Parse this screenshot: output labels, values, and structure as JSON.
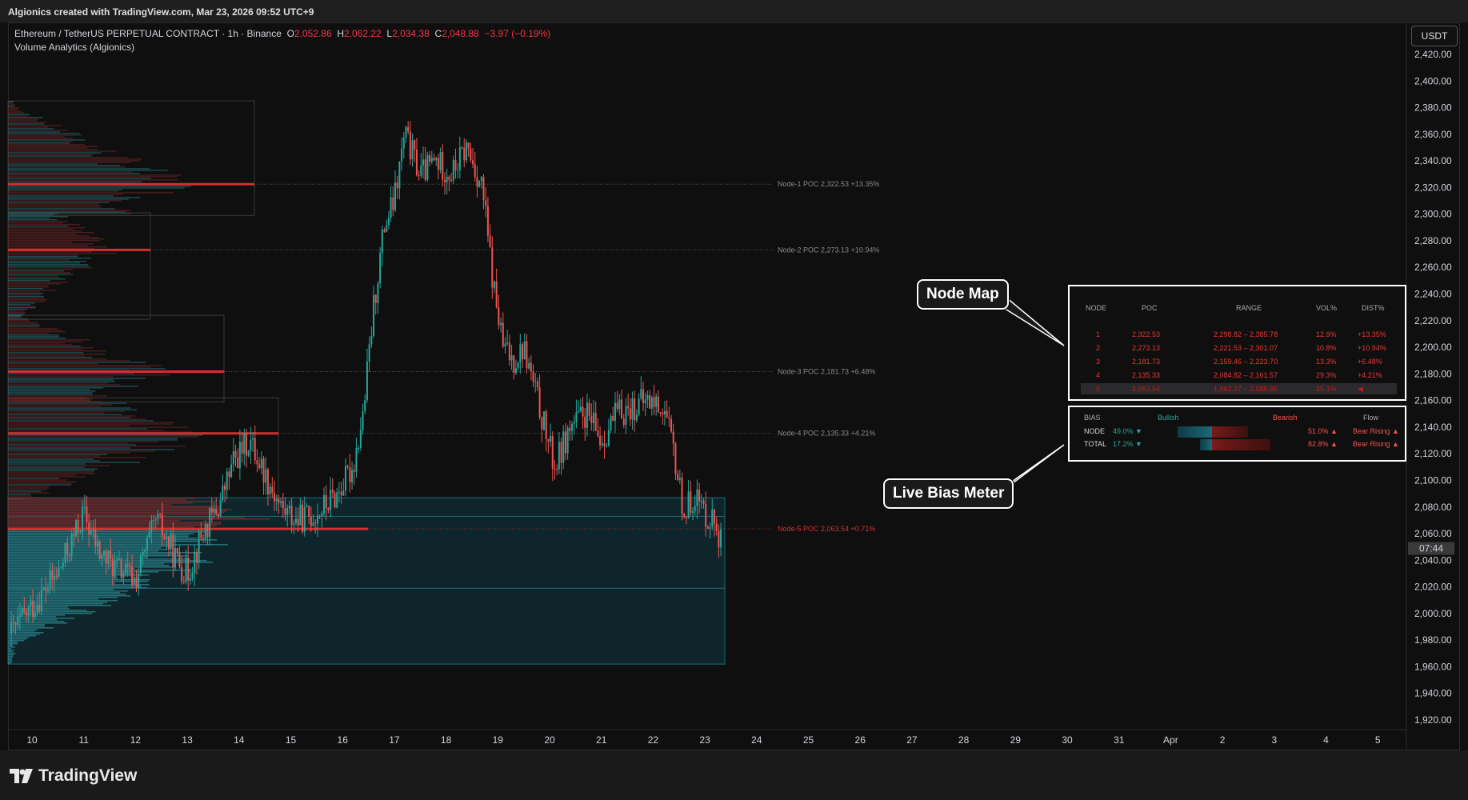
{
  "header": {
    "title": "Algionics created with TradingView.com, Mar 23, 2026 09:52 UTC+9"
  },
  "legend": {
    "symbol": "Ethereum / TetherUS PERPETUAL CONTRACT · 1h · Binance",
    "o_label": "O",
    "o": "2,052.86",
    "h_label": "H",
    "h": "2,062.22",
    "l_label": "L",
    "l": "2,034.38",
    "c_label": "C",
    "c": "2,048.88",
    "change": "−3.97 (−0.19%)",
    "indicator": "Volume Analytics (Algionics)"
  },
  "currency": "USDT",
  "price_tag": "07:44",
  "brand": "TradingView",
  "colors": {
    "bull": "#26a69a",
    "bear": "#ef5350",
    "poc": "#d32f2f",
    "teal_zone": "#0e2a30"
  },
  "chart_data": {
    "type": "candlestick",
    "y_ticks": [
      "2,420.00",
      "2,400.00",
      "2,380.00",
      "2,360.00",
      "2,340.00",
      "2,320.00",
      "2,300.00",
      "2,280.00",
      "2,260.00",
      "2,240.00",
      "2,220.00",
      "2,200.00",
      "2,180.00",
      "2,160.00",
      "2,140.00",
      "2,120.00",
      "2,100.00",
      "2,080.00",
      "2,060.00",
      "2,040.00",
      "2,020.00",
      "2,000.00",
      "1,980.00",
      "1,960.00",
      "1,940.00",
      "1,920.00"
    ],
    "y_tick_values": [
      2420,
      2400,
      2380,
      2360,
      2340,
      2320,
      2300,
      2280,
      2260,
      2240,
      2220,
      2200,
      2180,
      2160,
      2140,
      2120,
      2100,
      2080,
      2060,
      2040,
      2020,
      2000,
      1980,
      1960,
      1940,
      1920
    ],
    "ylim": [
      1912,
      2432
    ],
    "x_ticks": [
      "10",
      "11",
      "12",
      "13",
      "14",
      "15",
      "16",
      "17",
      "18",
      "19",
      "20",
      "21",
      "22",
      "23",
      "24",
      "25",
      "26",
      "27",
      "28",
      "29",
      "30",
      "31",
      "Apr",
      "2",
      "3",
      "4",
      "5"
    ],
    "xlim_days": [
      9.55,
      36.9
    ],
    "close_path_days": [
      9.6,
      10.0,
      10.5,
      11.0,
      11.3,
      11.6,
      12.0,
      12.4,
      12.8,
      13.0,
      13.3,
      13.6,
      13.9,
      14.2,
      14.5,
      14.8,
      15.1,
      15.5,
      15.9,
      16.2,
      16.4,
      16.6,
      16.8,
      17.0,
      17.2,
      17.5,
      17.8,
      18.1,
      18.4,
      18.7,
      18.9,
      19.1,
      19.3,
      19.5,
      19.7,
      19.9,
      20.1,
      20.4,
      20.7,
      21.0,
      21.3,
      21.6,
      21.9,
      22.2,
      22.4,
      22.6,
      22.8,
      23.0,
      23.2,
      23.35
    ],
    "close_path_values": [
      1985,
      2005,
      2030,
      2075,
      2045,
      2035,
      2025,
      2070,
      2040,
      2030,
      2060,
      2080,
      2115,
      2130,
      2105,
      2080,
      2070,
      2075,
      2090,
      2110,
      2150,
      2230,
      2290,
      2310,
      2360,
      2330,
      2340,
      2330,
      2350,
      2320,
      2250,
      2200,
      2190,
      2200,
      2170,
      2140,
      2110,
      2140,
      2150,
      2130,
      2150,
      2155,
      2160,
      2155,
      2120,
      2075,
      2090,
      2075,
      2070,
      2048
    ],
    "nodes": [
      {
        "label": "Node-1 POC 2,322.53",
        "dist": "+13.35%",
        "price": 2322.53
      },
      {
        "label": "Node-2 POC 2,273.13",
        "dist": "+10.94%",
        "price": 2273.13
      },
      {
        "label": "Node-3 POC 2,181.73",
        "dist": "+6.48%",
        "price": 2181.73
      },
      {
        "label": "Node-4 POC 2,135.33",
        "dist": "+4.21%",
        "price": 2135.33
      },
      {
        "label": "Node-5 POC 2,063.54",
        "dist": "+0.71%",
        "price": 2063.54
      }
    ]
  },
  "node_map": {
    "callout": "Node Map",
    "headers": {
      "node": "NODE",
      "poc": "POC",
      "range": "RANGE",
      "vol": "VOL%",
      "dist": "DIST%"
    },
    "rows": [
      {
        "node": "1",
        "poc": "2,322.53",
        "range": "2,298.82 – 2,385.78",
        "vol": "12.9%",
        "dist": "+13.35%"
      },
      {
        "node": "2",
        "poc": "2,273.13",
        "range": "2,221.53 – 2,301.07",
        "vol": "10.8%",
        "dist": "+10.94%"
      },
      {
        "node": "3",
        "poc": "2,181.73",
        "range": "2,159.46 – 2,223.70",
        "vol": "13.3%",
        "dist": "+6.48%"
      },
      {
        "node": "4",
        "poc": "2,135.33",
        "range": "2,084.82 – 2,161.57",
        "vol": "29.3%",
        "dist": "+4.21%"
      },
      {
        "node": "5",
        "poc": "2,063.54",
        "range": "1,962.27 – 2,086.86",
        "vol": "25.1%",
        "dist": "◀"
      }
    ]
  },
  "bias": {
    "callout": "Live Bias Meter",
    "headers": {
      "bias": "BIAS",
      "bullish": "Bullish",
      "bearish": "Bearish",
      "flow": "Flow"
    },
    "rows": [
      {
        "label": "NODE",
        "bull": "49.0% ▼",
        "bear": "51.0% ▲",
        "flow": "Bear Rising ▲",
        "bull_frac": 0.49,
        "bear_frac": 0.51
      },
      {
        "label": "TOTAL",
        "bull": "17.2% ▼",
        "bear": "82.8% ▲",
        "flow": "Bear Rising ▲",
        "bull_frac": 0.172,
        "bear_frac": 0.828
      }
    ]
  }
}
